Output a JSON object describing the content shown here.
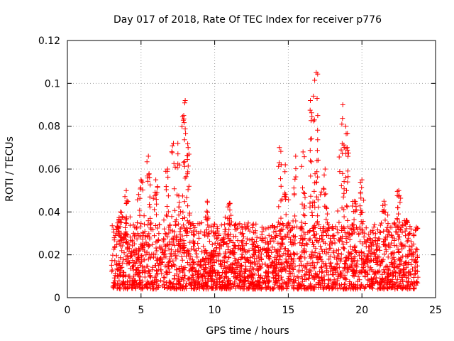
{
  "chart_data": {
    "type": "scatter",
    "title": "Day 017 of 2018, Rate Of TEC Index for receiver p776",
    "xlabel": "GPS time / hours",
    "ylabel": "ROTI / TECUs",
    "xlim": [
      0,
      25
    ],
    "ylim": [
      0,
      0.12
    ],
    "x_ticks": [
      0,
      5,
      10,
      15,
      20,
      25
    ],
    "x_tick_labels": [
      "0",
      "5",
      "10",
      "15",
      "20",
      "25"
    ],
    "y_ticks": [
      0,
      0.02,
      0.04,
      0.06,
      0.08,
      0.1,
      0.12
    ],
    "y_tick_labels": [
      "0",
      "0.02",
      "0.04",
      "0.06",
      "0.08",
      "0.1",
      "0.12"
    ],
    "grid": true,
    "marker": "+",
    "marker_color": "#ff0000",
    "series": [
      {
        "name": "ROTI",
        "x_range": [
          3.0,
          23.8
        ],
        "typical_band": [
          0.004,
          0.035
        ],
        "peaks": [
          {
            "x": 3.6,
            "y": 0.04
          },
          {
            "x": 4.0,
            "y": 0.05
          },
          {
            "x": 5.0,
            "y": 0.055
          },
          {
            "x": 5.5,
            "y": 0.066
          },
          {
            "x": 6.0,
            "y": 0.055
          },
          {
            "x": 6.8,
            "y": 0.06
          },
          {
            "x": 7.2,
            "y": 0.072
          },
          {
            "x": 7.5,
            "y": 0.072
          },
          {
            "x": 7.9,
            "y": 0.085
          },
          {
            "x": 8.0,
            "y": 0.092
          },
          {
            "x": 8.2,
            "y": 0.07
          },
          {
            "x": 9.5,
            "y": 0.045
          },
          {
            "x": 11.0,
            "y": 0.044
          },
          {
            "x": 14.4,
            "y": 0.07
          },
          {
            "x": 14.8,
            "y": 0.062
          },
          {
            "x": 15.5,
            "y": 0.066
          },
          {
            "x": 16.0,
            "y": 0.068
          },
          {
            "x": 16.5,
            "y": 0.092
          },
          {
            "x": 16.7,
            "y": 0.094
          },
          {
            "x": 16.9,
            "y": 0.105
          },
          {
            "x": 17.0,
            "y": 0.085
          },
          {
            "x": 17.5,
            "y": 0.06
          },
          {
            "x": 18.7,
            "y": 0.09
          },
          {
            "x": 18.9,
            "y": 0.08
          },
          {
            "x": 19.0,
            "y": 0.07
          },
          {
            "x": 19.5,
            "y": 0.045
          },
          {
            "x": 20.0,
            "y": 0.055
          },
          {
            "x": 21.5,
            "y": 0.045
          },
          {
            "x": 22.5,
            "y": 0.05
          },
          {
            "x": 23.0,
            "y": 0.036
          }
        ]
      }
    ]
  }
}
